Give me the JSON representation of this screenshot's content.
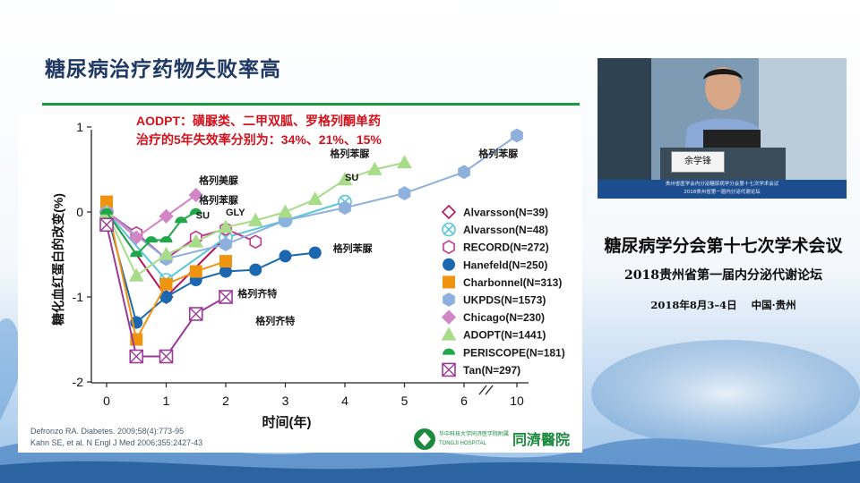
{
  "slide": {
    "title": "糖尿病治疗药物失败率高",
    "annotation_line1": "AODPT：磺脲类、二甲双胍、罗格列酮单药",
    "annotation_line2": "治疗的5年失效率分别为：34%、21%、15%",
    "references": [
      "Defronzo RA. Diabetes. 2009;58(4):773-95",
      "Kahn SE, et al. N Engl J Med 2006;355:2427-43"
    ],
    "hospital_logo_small": "华中科技大学同济医学院附属",
    "hospital_logo_sub": "TONGJI HOSPITAL",
    "hospital_logo_name": "同濟醫院"
  },
  "conference": {
    "line1": "糖尿病学分会第十七次学术会议",
    "line2": "2018贵州省第一届内分泌代谢论坛",
    "line3": "2018年8月3–4日    中国·贵州",
    "speaker_nameplate": "余学锋",
    "screen_banner_line1": "贵州省医学会内分泌糖尿病学分会第十七次学术会议",
    "screen_banner_line2": "2018贵州省第一届内分泌代谢论坛"
  },
  "chart_data": {
    "type": "line",
    "xlabel": "时间(年)",
    "ylabel": "糖化血红蛋白的改变(%)",
    "x_ticks": [
      0,
      1,
      2,
      3,
      4,
      5,
      6,
      10
    ],
    "x_tick_labels": [
      "0",
      "1",
      "2",
      "3",
      "4",
      "5",
      "6",
      "10"
    ],
    "y_ticks": [
      1,
      0,
      -1,
      -2
    ],
    "y_tick_labels": [
      "1",
      "0",
      "-1",
      "-2"
    ],
    "ylim": [
      -2,
      1
    ],
    "axis_break_between": [
      6,
      10
    ],
    "series": [
      {
        "name": "Alvarsson(N=39)",
        "marker": "diamond-open",
        "color": "#b5145b",
        "x": [
          0,
          1,
          2
        ],
        "y": [
          0,
          -1.0,
          -0.3
        ]
      },
      {
        "name": "Alvarsson(N=48)",
        "marker": "circle-x",
        "color": "#5bc6d8",
        "x": [
          0,
          1,
          2,
          3,
          4
        ],
        "y": [
          0,
          -0.8,
          -0.3,
          -0.1,
          0.12
        ]
      },
      {
        "name": "RECORD(N=272)",
        "marker": "hexagon-open",
        "color": "#c23a8c",
        "x": [
          0,
          0.5,
          1,
          1.5,
          2,
          2.5
        ],
        "y": [
          0,
          -0.25,
          -0.55,
          -0.3,
          -0.2,
          -0.35
        ]
      },
      {
        "name": "Hanefeld(N=250)",
        "marker": "circle",
        "color": "#1c68b0",
        "x": [
          0,
          0.5,
          1,
          1.5,
          2,
          2.5,
          3,
          3.5
        ],
        "y": [
          0,
          -1.3,
          -1.0,
          -0.8,
          -0.7,
          -0.68,
          -0.52,
          -0.48
        ]
      },
      {
        "name": "Charbonnel(N=313)",
        "marker": "square",
        "color": "#f0940f",
        "x": [
          0,
          0.5,
          1,
          1.5,
          2
        ],
        "y": [
          0.12,
          -1.5,
          -0.85,
          -0.7,
          -0.58
        ]
      },
      {
        "name": "UKPDS(N=1573)",
        "marker": "hexagon",
        "color": "#8eb0dc",
        "x": [
          0,
          1,
          2,
          3,
          4,
          5,
          6,
          10
        ],
        "y": [
          0,
          -0.55,
          -0.38,
          -0.1,
          0.05,
          0.22,
          0.47,
          0.9
        ]
      },
      {
        "name": "Chicago(N=230)",
        "marker": "diamond",
        "color": "#d186c5",
        "x": [
          0,
          0.5,
          1,
          1.5
        ],
        "y": [
          0,
          -0.3,
          -0.05,
          0.2
        ]
      },
      {
        "name": "ADOPT(N=1441)",
        "marker": "triangle",
        "color": "#a8dc88",
        "x": [
          0,
          0.5,
          1,
          1.5,
          2,
          2.5,
          3,
          3.5,
          4,
          4.5,
          5
        ],
        "y": [
          0,
          -0.75,
          -0.5,
          -0.35,
          -0.18,
          -0.1,
          0,
          0.15,
          0.38,
          0.5,
          0.58
        ]
      },
      {
        "name": "PERISCOPE(N=181)",
        "marker": "half-circle",
        "color": "#1ea84a",
        "x": [
          0,
          0.5,
          0.75,
          1,
          1.25,
          1.5
        ],
        "y": [
          0,
          -0.5,
          -0.33,
          -0.33,
          -0.1,
          0
        ]
      },
      {
        "name": "Tan(N=297)",
        "marker": "square-x",
        "color": "#9c3a97",
        "x": [
          0,
          0.5,
          1,
          1.5,
          2
        ],
        "y": [
          -0.15,
          -1.7,
          -1.7,
          -1.2,
          -1.0
        ]
      }
    ],
    "annotations": [
      {
        "text": "格列美脲",
        "x": 1.55,
        "y": 0.33
      },
      {
        "text": "格列苯脲",
        "x": 1.55,
        "y": 0.1
      },
      {
        "text": "SU",
        "x": 1.5,
        "y": -0.08
      },
      {
        "text": "GLY",
        "x": 2.0,
        "y": -0.04
      },
      {
        "text": "格列苯脲",
        "x": 3.75,
        "y": 0.65
      },
      {
        "text": "SU",
        "x": 4.0,
        "y": 0.37
      },
      {
        "text": "格列苯脲",
        "x": 7.1,
        "y": 0.65
      },
      {
        "text": "格列苯脲",
        "x": 3.8,
        "y": -0.47
      },
      {
        "text": "格列齐特",
        "x": 2.2,
        "y": -1.0
      },
      {
        "text": "格列齐特",
        "x": 2.5,
        "y": -1.32
      }
    ]
  }
}
